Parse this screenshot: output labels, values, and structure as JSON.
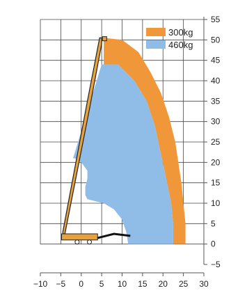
{
  "chart_data": {
    "type": "area",
    "title": "",
    "xlabel": "",
    "ylabel": "",
    "xlim": [
      -10,
      30
    ],
    "ylim": [
      -5,
      55
    ],
    "x_ticks": [
      -10,
      -5,
      0,
      5,
      10,
      15,
      20,
      25,
      30
    ],
    "y_ticks": [
      -5,
      0,
      5,
      10,
      15,
      20,
      25,
      30,
      35,
      40,
      45,
      50,
      55
    ],
    "grid": true,
    "legend_position": "top-right",
    "series": [
      {
        "name": "300kg",
        "color": "#f0973a",
        "points": [
          [
            5.5,
            50.5
          ],
          [
            10,
            50
          ],
          [
            14,
            47
          ],
          [
            17,
            42
          ],
          [
            19.5,
            37
          ],
          [
            21.5,
            31
          ],
          [
            23,
            25
          ],
          [
            24.5,
            15
          ],
          [
            25,
            10
          ],
          [
            25.5,
            5
          ],
          [
            25.5,
            0
          ],
          [
            22.5,
            0
          ],
          [
            22.5,
            5
          ],
          [
            22,
            10
          ],
          [
            21,
            15
          ],
          [
            19.5,
            22
          ],
          [
            18,
            29
          ],
          [
            16,
            35
          ],
          [
            13,
            40
          ],
          [
            9,
            44
          ],
          [
            5.5,
            44
          ]
        ]
      },
      {
        "name": "460kg",
        "color": "#8fbde8",
        "points": [
          [
            5.5,
            44
          ],
          [
            9,
            44
          ],
          [
            13,
            40
          ],
          [
            16,
            35
          ],
          [
            18,
            29
          ],
          [
            19.5,
            22
          ],
          [
            21,
            15
          ],
          [
            22,
            10
          ],
          [
            22.5,
            5
          ],
          [
            22.5,
            0
          ],
          [
            11.5,
            0
          ],
          [
            11,
            3
          ],
          [
            10,
            6
          ],
          [
            8,
            8.5
          ],
          [
            5.5,
            10
          ],
          [
            3.5,
            10.5
          ],
          [
            1.5,
            11
          ],
          [
            1,
            12
          ],
          [
            1,
            14
          ],
          [
            1.5,
            16
          ],
          [
            1.5,
            18
          ],
          [
            0,
            20
          ],
          [
            -1.5,
            21
          ],
          [
            -2,
            21
          ],
          [
            5,
            44
          ]
        ]
      }
    ],
    "boom": {
      "outline": [
        [
          -4.5,
          2.5
        ],
        [
          -4,
          2.5
        ],
        [
          2,
          33
        ],
        [
          5,
          49
        ],
        [
          5,
          50.5
        ],
        [
          4.5,
          50.5
        ],
        [
          1.5,
          35
        ],
        [
          -4.5,
          3
        ]
      ],
      "chassis": [
        [
          -4.5,
          1.5
        ],
        [
          4,
          1.5
        ],
        [
          8,
          2.5
        ],
        [
          12,
          2
        ]
      ]
    },
    "legend": [
      {
        "label": "300kg",
        "color": "#f0973a"
      },
      {
        "label": "460kg",
        "color": "#8fbde8"
      }
    ]
  }
}
